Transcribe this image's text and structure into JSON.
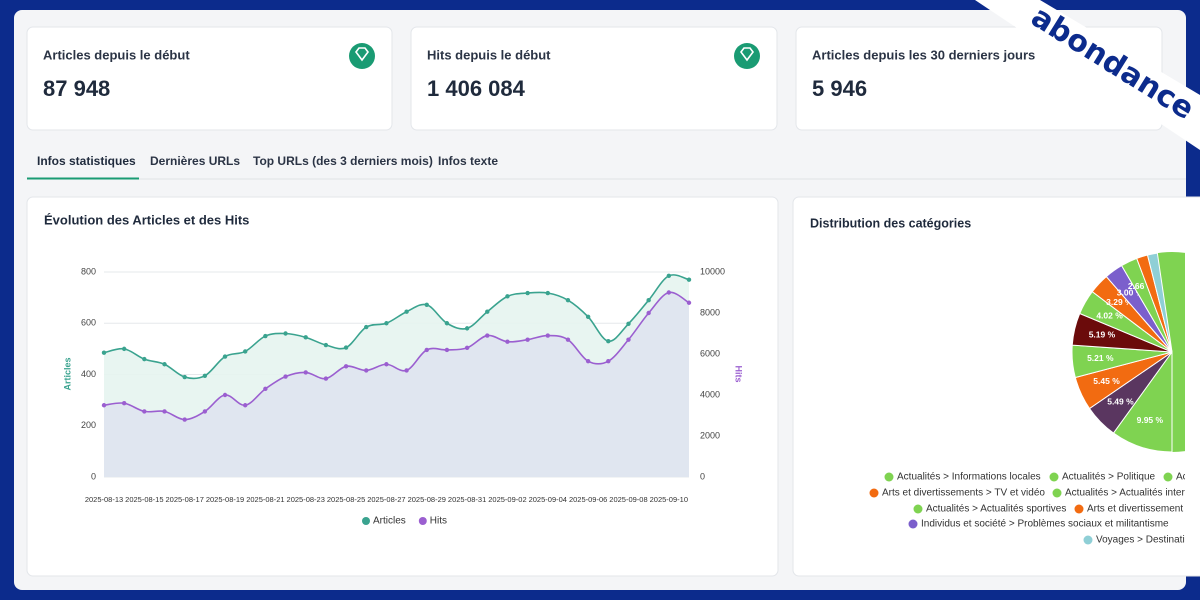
{
  "brand": "abondance",
  "cards": [
    {
      "title": "Articles depuis le début",
      "value": "87 948"
    },
    {
      "title": "Hits depuis le début",
      "value": "1 406 084"
    },
    {
      "title": "Articles depuis les 30 derniers jours",
      "value": "5 946"
    }
  ],
  "tabs": [
    "Infos statistiques",
    "Dernières URLs",
    "Top URLs (des 3 derniers mois)",
    "Infos texte"
  ],
  "chart_data": [
    {
      "type": "line",
      "title": "Évolution des Articles et des Hits",
      "categories": [
        "2025-08-13",
        null,
        "2025-08-15",
        null,
        "2025-08-17",
        null,
        "2025-08-19",
        null,
        "2025-08-21",
        null,
        "2025-08-23",
        null,
        "2025-08-25",
        null,
        "2025-08-27",
        null,
        "2025-08-29",
        null,
        "2025-08-31",
        null,
        "2025-09-02",
        null,
        "2025-09-04",
        null,
        "2025-09-06",
        null,
        "2025-09-08",
        null,
        "2025-09-10",
        null
      ],
      "ylabel": "Articles",
      "y2label": "Hits",
      "ylim": [
        0,
        800
      ],
      "yticks": [
        0,
        200,
        400,
        600,
        800
      ],
      "y2lim": [
        0,
        10000
      ],
      "y2ticks": [
        0,
        2000,
        4000,
        6000,
        8000,
        10000
      ],
      "grid": true,
      "legend": "bottom",
      "series": [
        {
          "name": "Articles",
          "color": "#3aa38f",
          "fill": "#e6f4ef",
          "values": [
            485,
            500,
            460,
            440,
            390,
            395,
            470,
            490,
            550,
            560,
            545,
            515,
            505,
            585,
            600,
            645,
            672,
            600,
            580,
            645,
            705,
            718,
            718,
            690,
            625,
            530,
            598,
            690,
            785,
            770
          ]
        },
        {
          "name": "Hits",
          "color": "#9b5fd0",
          "fill": "#dfe4f0",
          "axis": "y2",
          "values": [
            3500,
            3600,
            3200,
            3200,
            2800,
            3200,
            4000,
            3500,
            4300,
            4900,
            5100,
            4800,
            5400,
            5200,
            5500,
            5200,
            6200,
            6200,
            6300,
            6900,
            6600,
            6700,
            6900,
            6700,
            5650,
            5650,
            6700,
            8000,
            9000,
            8500
          ]
        }
      ]
    },
    {
      "type": "pie",
      "title": "Distribution des catégories",
      "values": [
        9.95,
        5.49,
        5.45,
        5.21,
        5.19,
        4.02,
        3.29,
        3.0,
        2.66,
        1.8,
        1.6
      ],
      "value_labels": [
        "9.95 %",
        "5.49 %",
        "5.45 %",
        "5.21 %",
        "5.19 %",
        "4.02 %",
        "3.29 %",
        "3.00 %",
        "2.66 %",
        null,
        null
      ],
      "colors": [
        "#7fd351",
        "#5a3660",
        "#f26b11",
        "#7fd351",
        "#6b0b0b",
        "#7fd351",
        "#f26b11",
        "#7b5fcc",
        "#7fd351",
        "#f26b11",
        "#8fcfd6"
      ],
      "legend": [
        {
          "name": "Actualités > Informations locales",
          "color": "#7fd351"
        },
        {
          "name": "Actualités > Politique",
          "color": "#7fd351"
        },
        {
          "name": "Ac",
          "color": "#7fd351"
        },
        {
          "name": "Arts et divertissements > TV et vidéo",
          "color": "#f26b11"
        },
        {
          "name": "Actualités > Actualités inter",
          "color": "#7fd351"
        },
        {
          "name": "Actualités > Actualités sportives",
          "color": "#7fd351"
        },
        {
          "name": "Arts et divertissement",
          "color": "#f26b11"
        },
        {
          "name": "Individus et société > Problèmes sociaux et militantisme",
          "color": "#7b5fcc"
        },
        {
          "name": "Voyages > Destinatio",
          "color": "#8fcfd6"
        }
      ]
    }
  ]
}
